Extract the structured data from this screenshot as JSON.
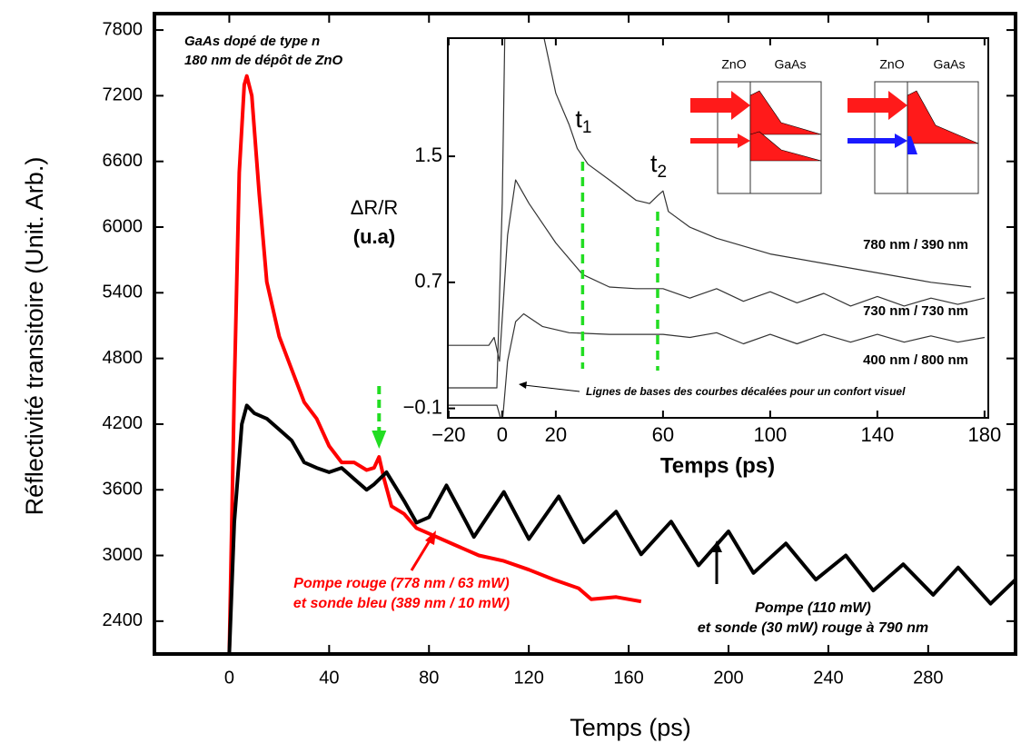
{
  "chart_data": [
    {
      "type": "line",
      "x_label": "Temps (ps)",
      "y_label": "Réflectivité transitoire (Unit. Arb.)",
      "xlim": [
        -30,
        315
      ],
      "ylim": [
        2100,
        7950
      ],
      "xticks": [
        0,
        40,
        80,
        120,
        160,
        200,
        240,
        280
      ],
      "yticks": [
        2400,
        3000,
        3600,
        4200,
        4800,
        5400,
        6000,
        6600,
        7200,
        7800
      ],
      "sample_labels": [
        "GaAs dopé de type n",
        "180 nm de dépôt de ZnO"
      ],
      "series": [
        {
          "label": [
            "Pompe rouge (778 nm / 63 mW)",
            "et sonde bleu (389 nm / 10 mW)"
          ],
          "color": "#ff0000",
          "x": [
            0,
            2,
            4,
            6,
            7,
            9,
            12,
            15,
            20,
            25,
            30,
            35,
            40,
            45,
            50,
            55,
            58,
            60,
            62,
            65,
            70,
            75,
            80,
            90,
            100,
            110,
            120,
            130,
            140,
            145,
            155,
            165
          ],
          "values": [
            2100,
            4500,
            6500,
            7300,
            7380,
            7200,
            6300,
            5500,
            5000,
            4700,
            4400,
            4250,
            4000,
            3850,
            3850,
            3780,
            3800,
            3900,
            3700,
            3450,
            3380,
            3250,
            3200,
            3100,
            3000,
            2950,
            2870,
            2780,
            2700,
            2600,
            2620,
            2580
          ]
        },
        {
          "label": [
            "Pompe (110 mW)",
            "et sonde (30 mW) rouge à 790 nm"
          ],
          "color": "#000000",
          "x": [
            0,
            2,
            5,
            7,
            10,
            15,
            20,
            25,
            30,
            35,
            40,
            45,
            50,
            55,
            58,
            63,
            70,
            75,
            80,
            87,
            95,
            98,
            110,
            120,
            132,
            142,
            155,
            165,
            177,
            188,
            200,
            210,
            223,
            235,
            247,
            258,
            270,
            282,
            292,
            305,
            315
          ],
          "values": [
            2100,
            3300,
            4200,
            4370,
            4300,
            4250,
            4150,
            4050,
            3850,
            3800,
            3760,
            3800,
            3700,
            3600,
            3650,
            3760,
            3500,
            3300,
            3350,
            3640,
            3300,
            3170,
            3580,
            3150,
            3540,
            3120,
            3400,
            3010,
            3310,
            2910,
            3220,
            2840,
            3110,
            2780,
            3000,
            2680,
            2920,
            2640,
            2890,
            2560,
            2780
          ]
        }
      ],
      "marker_x": 60
    },
    {
      "type": "line",
      "x_label": "Temps (ps)",
      "y_label": [
        "ΔR/R",
        "(u.a)"
      ],
      "xlim": [
        -20.3,
        181.4
      ],
      "ylim": [
        -0.16,
        2.25
      ],
      "xticks": [
        {
          "value": -20,
          "label": "−20"
        },
        0,
        20,
        60,
        100,
        140,
        180
      ],
      "yticks": [
        {
          "value": 1.5,
          "label": "1.5"
        },
        0.7,
        {
          "value": -0.1,
          "label": "−0.1"
        }
      ],
      "series": [
        {
          "name": "780 nm / 390 nm",
          "color": "#333333",
          "x": [
            -20,
            -2,
            0,
            1,
            15,
            20,
            25,
            28,
            32,
            40,
            50,
            55,
            58,
            60,
            62,
            70,
            80,
            100,
            120,
            140,
            160,
            175
          ],
          "values": [
            0.03,
            0.03,
            1.2,
            2.3,
            2.3,
            1.9,
            1.7,
            1.55,
            1.45,
            1.35,
            1.22,
            1.2,
            1.25,
            1.28,
            1.15,
            1.05,
            0.98,
            0.88,
            0.82,
            0.76,
            0.7,
            0.67
          ]
        },
        {
          "name": "730 nm / 730 nm",
          "color": "#333333",
          "x": [
            -20,
            -5,
            -3,
            -1,
            2,
            5,
            10,
            20,
            30,
            40,
            50,
            60,
            70,
            80,
            90,
            100,
            110,
            120,
            130,
            140,
            150,
            160,
            170,
            180
          ],
          "values": [
            0.3,
            0.3,
            0.35,
            0.2,
            1.0,
            1.35,
            1.2,
            0.95,
            0.75,
            0.67,
            0.66,
            0.66,
            0.6,
            0.66,
            0.58,
            0.64,
            0.57,
            0.63,
            0.55,
            0.61,
            0.55,
            0.6,
            0.56,
            0.6
          ]
        },
        {
          "name": "400 nm / 800 nm",
          "color": "#333333",
          "x": [
            -20,
            -2,
            0,
            2,
            5,
            8,
            15,
            25,
            40,
            50,
            60,
            70,
            80,
            90,
            100,
            110,
            120,
            130,
            140,
            150,
            160,
            170,
            180
          ],
          "values": [
            -0.08,
            -0.08,
            -0.2,
            0.2,
            0.45,
            0.5,
            0.42,
            0.38,
            0.37,
            0.37,
            0.37,
            0.35,
            0.38,
            0.31,
            0.37,
            0.31,
            0.37,
            0.32,
            0.37,
            0.32,
            0.36,
            0.32,
            0.35
          ]
        }
      ],
      "markers": [
        {
          "x": 30,
          "symbol": "t",
          "index": "1"
        },
        {
          "x": 58,
          "symbol": "t",
          "index": "2"
        }
      ],
      "note": "Lignes de bases des courbes décalées pour un confort visuel",
      "schematic_labels": [
        "ZnO",
        "GaAs",
        "ZnO",
        "GaAs"
      ]
    }
  ]
}
